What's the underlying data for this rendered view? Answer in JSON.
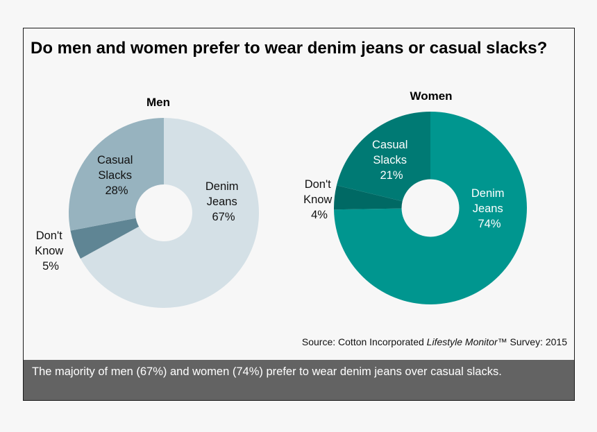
{
  "title": "Do men and women prefer to wear denim jeans or casual slacks?",
  "source": {
    "prefix": "Source: Cotton Incorporated ",
    "italic": "Lifestyle Monitor",
    "suffix": "™ Survey: 2015"
  },
  "takeaway": "The majority of men (67%) and women (74%) prefer to wear denim jeans over casual slacks.",
  "chart_data": [
    {
      "type": "pie",
      "variant": "donut",
      "title": "Men",
      "categories": [
        "Denim Jeans",
        "Don't Know",
        "Casual Slacks"
      ],
      "values": [
        67,
        5,
        28
      ],
      "unit": "%",
      "colors": [
        "#d4e0e6",
        "#5f8594",
        "#97b3bf"
      ],
      "labels": [
        {
          "lines": [
            "Denim",
            "Jeans",
            "67%"
          ],
          "color": "#111111"
        },
        {
          "lines": [
            "Don't",
            "Know",
            "5%"
          ],
          "color": "#111111"
        },
        {
          "lines": [
            "Casual",
            "Slacks",
            "28%"
          ],
          "color": "#111111"
        }
      ],
      "start_angle": "12 o'clock",
      "direction": "clockwise"
    },
    {
      "type": "pie",
      "variant": "donut",
      "title": "Women",
      "categories": [
        "Denim Jeans",
        "Don't Know",
        "Casual Slacks"
      ],
      "values": [
        74,
        4,
        21
      ],
      "unit": "%",
      "colors": [
        "#00968f",
        "#006964",
        "#007a74"
      ],
      "labels": [
        {
          "lines": [
            "Denim",
            "Jeans",
            "74%"
          ],
          "color": "#ffffff"
        },
        {
          "lines": [
            "Don't",
            "Know",
            "4%"
          ],
          "color": "#111111"
        },
        {
          "lines": [
            "Casual",
            "Slacks",
            "21%"
          ],
          "color": "#ffffff"
        }
      ],
      "start_angle": "12 o'clock",
      "direction": "clockwise"
    }
  ]
}
